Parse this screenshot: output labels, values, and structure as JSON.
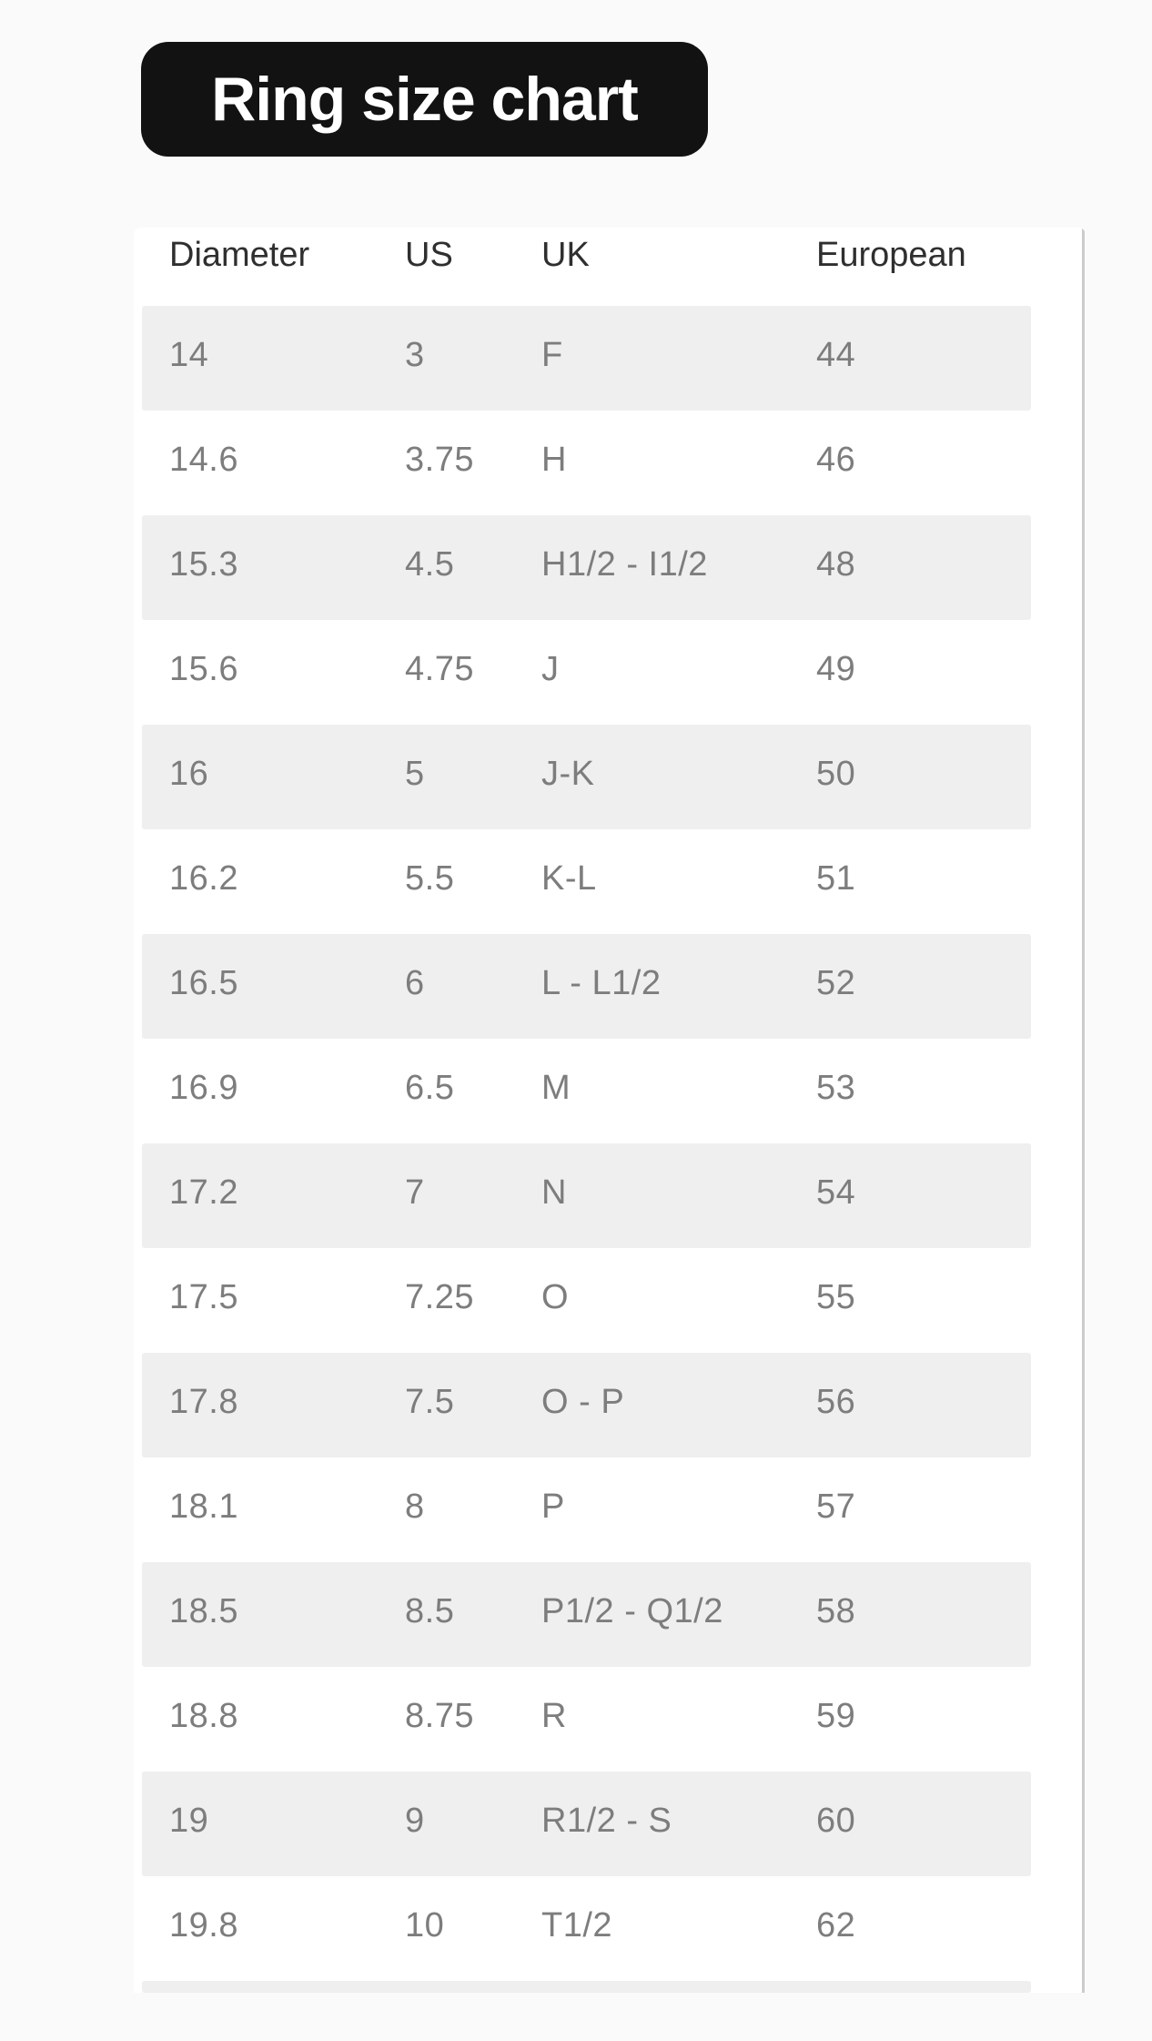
{
  "title": {
    "text": "Ring size chart",
    "background_color": "#121212",
    "text_color": "#ffffff"
  },
  "table": {
    "headers": [
      "Diameter",
      "US",
      "UK",
      "European"
    ],
    "rows": [
      [
        "14",
        "3",
        "F",
        "44"
      ],
      [
        "14.6",
        "3.75",
        "H",
        "46"
      ],
      [
        "15.3",
        "4.5",
        "H1/2 - I1/2",
        "48"
      ],
      [
        "15.6",
        "4.75",
        "J",
        "49"
      ],
      [
        "16",
        "5",
        "J-K",
        "50"
      ],
      [
        "16.2",
        "5.5",
        "K-L",
        "51"
      ],
      [
        "16.5",
        "6",
        "L - L1/2",
        "52"
      ],
      [
        "16.9",
        "6.5",
        "M",
        "53"
      ],
      [
        "17.2",
        "7",
        "N",
        "54"
      ],
      [
        "17.5",
        "7.25",
        "O",
        "55"
      ],
      [
        "17.8",
        "7.5",
        "O - P",
        "56"
      ],
      [
        "18.1",
        "8",
        "P",
        "57"
      ],
      [
        "18.5",
        "8.5",
        "P1/2 - Q1/2",
        "58"
      ],
      [
        "18.8",
        "8.75",
        "R",
        "59"
      ],
      [
        "19",
        "9",
        "R1/2 - S",
        "60"
      ],
      [
        "19.8",
        "10",
        "T1/2",
        "62"
      ]
    ],
    "has_partial_next_row": true,
    "stripe_color": "#efefef",
    "row_text_color": "#7d7d7d",
    "header_text_color": "#2f2f2f",
    "scrollbar_color": "#cbcbcb",
    "page_background": "#fafafa"
  },
  "chart_data": {
    "type": "table",
    "title": "Ring size chart",
    "columns": [
      "Diameter",
      "US",
      "UK",
      "European"
    ],
    "rows": [
      [
        "14",
        "3",
        "F",
        "44"
      ],
      [
        "14.6",
        "3.75",
        "H",
        "46"
      ],
      [
        "15.3",
        "4.5",
        "H1/2 - I1/2",
        "48"
      ],
      [
        "15.6",
        "4.75",
        "J",
        "49"
      ],
      [
        "16",
        "5",
        "J-K",
        "50"
      ],
      [
        "16.2",
        "5.5",
        "K-L",
        "51"
      ],
      [
        "16.5",
        "6",
        "L - L1/2",
        "52"
      ],
      [
        "16.9",
        "6.5",
        "M",
        "53"
      ],
      [
        "17.2",
        "7",
        "N",
        "54"
      ],
      [
        "17.5",
        "7.25",
        "O",
        "55"
      ],
      [
        "17.8",
        "7.5",
        "O - P",
        "56"
      ],
      [
        "18.1",
        "8",
        "P",
        "57"
      ],
      [
        "18.5",
        "8.5",
        "P1/2 - Q1/2",
        "58"
      ],
      [
        "18.8",
        "8.75",
        "R",
        "59"
      ],
      [
        "19",
        "9",
        "R1/2 - S",
        "60"
      ],
      [
        "19.8",
        "10",
        "T1/2",
        "62"
      ]
    ],
    "layout_hints": {
      "zebra_striping": true,
      "first_data_row_shaded": true,
      "scrollable": true
    }
  }
}
